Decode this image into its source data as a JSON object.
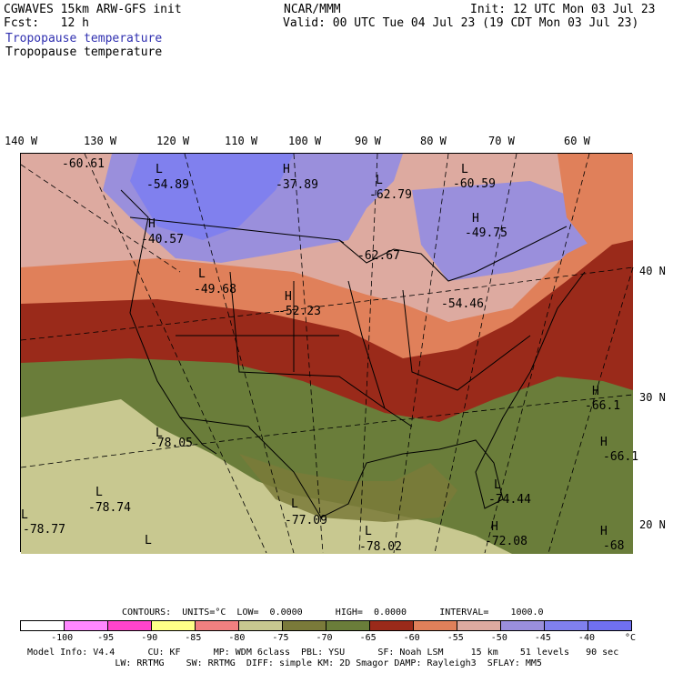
{
  "header": {
    "model": "CGWAVES 15km ARW-GFS init",
    "fcst": "Fcst:   12 h",
    "center": "NCAR/MMM",
    "init": "Init: 12 UTC Mon 03 Jul 23",
    "valid": "Valid: 00 UTC Tue 04 Jul 23 (19 CDT Mon 03 Jul 23)",
    "field_shaded": "Tropopause temperature",
    "field_contour": "Tropopause temperature"
  },
  "axes": {
    "lon_ticks": [
      "140 W",
      "130 W",
      "120 W",
      "110 W",
      "100 W",
      "90 W",
      "80 W",
      "70 W",
      "60 W"
    ],
    "lat_ticks": [
      "40 N",
      "30 N",
      "20 N"
    ]
  },
  "labels": [
    {
      "text": "-60.61"
    },
    {
      "text": "L"
    },
    {
      "text": "-54.89"
    },
    {
      "text": "H"
    },
    {
      "text": "-37.89"
    },
    {
      "text": "L"
    },
    {
      "text": "-62.79"
    },
    {
      "text": "L"
    },
    {
      "text": "-60.59"
    },
    {
      "text": "H"
    },
    {
      "text": "-49.75"
    },
    {
      "text": "H"
    },
    {
      "text": "-40.57"
    },
    {
      "text": "L"
    },
    {
      "text": "-49.68"
    },
    {
      "text": "H"
    },
    {
      "text": "-52.23"
    },
    {
      "text": "-62.67"
    },
    {
      "text": "-54.46"
    },
    {
      "text": "H"
    },
    {
      "text": "-66.1"
    },
    {
      "text": "L"
    },
    {
      "text": "-78.05"
    },
    {
      "text": "H"
    },
    {
      "text": "-66.1"
    },
    {
      "text": "L"
    },
    {
      "text": "-78.74"
    },
    {
      "text": "L"
    },
    {
      "text": "-78.77"
    },
    {
      "text": "L"
    },
    {
      "text": "-77.09"
    },
    {
      "text": "L"
    },
    {
      "text": "-74.44"
    },
    {
      "text": "L"
    },
    {
      "text": "-78.02"
    },
    {
      "text": "H"
    },
    {
      "text": "-72.08"
    },
    {
      "text": "H"
    },
    {
      "text": "-68"
    },
    {
      "text": "L"
    }
  ],
  "contours_info": "CONTOURS:  UNITS=°C  LOW=  0.0000      HIGH=  0.0000      INTERVAL=    1000.0",
  "colorbar": {
    "colors": [
      "#ffffff",
      "#ff88ff",
      "#ff44cc",
      "#ffff88",
      "#f08080",
      "#c8c890",
      "#7a7a3a",
      "#6a7d3a",
      "#9a2a1a",
      "#e0805a",
      "#ddaaa0",
      "#9a8fdc",
      "#8080ee",
      "#7070f0"
    ],
    "ticks": [
      "-100",
      "-95",
      "-90",
      "-85",
      "-80",
      "-75",
      "-70",
      "-65",
      "-60",
      "-55",
      "-50",
      "-45",
      "-40",
      "°C"
    ]
  },
  "model_info": [
    "Model Info: V4.4      CU: KF      MP: WDM 6class  PBL: YSU      SF: Noah LSM     15 km    51 levels   90 sec",
    "                LW: RRTMG    SW: RRTMG  DIFF: simple KM: 2D Smagor DAMP: Rayleigh3  SFLAY: MM5"
  ]
}
